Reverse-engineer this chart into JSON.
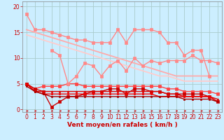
{
  "bg_color": "#cceeff",
  "grid_color": "#aacccc",
  "x_ticks": [
    0,
    1,
    2,
    3,
    4,
    5,
    6,
    7,
    8,
    9,
    10,
    11,
    12,
    13,
    14,
    15,
    16,
    17,
    18,
    19,
    20,
    21,
    22,
    23
  ],
  "xlabel": "Vent moyen/en rafales ( km/h )",
  "ylim": [
    -0.5,
    21
  ],
  "xlim": [
    -0.5,
    23.5
  ],
  "yticks": [
    0,
    5,
    10,
    15,
    20
  ],
  "lines": [
    {
      "y": [
        18.5,
        15.5,
        15.5,
        15.0,
        14.5,
        14.0,
        13.5,
        13.5,
        13.0,
        13.0,
        13.0,
        15.5,
        13.0,
        15.5,
        15.5,
        15.5,
        15.0,
        13.0,
        13.0,
        10.5,
        11.5,
        11.5,
        6.5,
        null
      ],
      "color": "#ff8888",
      "lw": 1.0,
      "marker": "s",
      "ms": 2.5,
      "zorder": 5
    },
    {
      "y": [
        null,
        null,
        null,
        11.5,
        10.5,
        5.0,
        6.5,
        9.0,
        8.5,
        6.5,
        8.5,
        9.5,
        7.5,
        10.0,
        8.5,
        9.5,
        9.0,
        9.5,
        9.5,
        9.5,
        10.5,
        9.5,
        9.5,
        9.0
      ],
      "color": "#ff8888",
      "lw": 1.0,
      "marker": "s",
      "ms": 2.5,
      "zorder": 5
    },
    {
      "y": [
        15.5,
        15.0,
        14.5,
        14.0,
        13.5,
        13.0,
        12.5,
        12.0,
        11.5,
        11.0,
        10.5,
        10.0,
        9.5,
        9.0,
        8.5,
        8.0,
        7.5,
        7.0,
        6.5,
        6.5,
        6.5,
        6.5,
        6.5,
        6.5
      ],
      "color": "#ffaaaa",
      "lw": 1.3,
      "marker": null,
      "ms": 0,
      "zorder": 2
    },
    {
      "y": [
        14.5,
        14.0,
        13.5,
        13.0,
        12.5,
        12.0,
        11.5,
        11.0,
        10.5,
        10.0,
        9.5,
        9.0,
        8.5,
        8.0,
        7.5,
        7.0,
        6.5,
        6.5,
        6.0,
        5.5,
        5.5,
        5.5,
        5.5,
        5.5
      ],
      "color": "#ffcccc",
      "lw": 1.3,
      "marker": null,
      "ms": 0,
      "zorder": 2
    },
    {
      "y": [
        5.0,
        4.0,
        4.5,
        4.5,
        4.5,
        5.0,
        5.0,
        4.5,
        4.5,
        4.5,
        4.5,
        4.5,
        4.5,
        4.5,
        4.5,
        4.5,
        4.5,
        4.0,
        4.0,
        3.5,
        3.5,
        3.5,
        3.5,
        3.0
      ],
      "color": "#ff4444",
      "lw": 1.0,
      "marker": "s",
      "ms": 2.5,
      "zorder": 4
    },
    {
      "y": [
        5.0,
        4.0,
        3.5,
        0.5,
        1.5,
        2.5,
        2.5,
        3.0,
        3.5,
        3.5,
        4.0,
        4.0,
        3.0,
        4.0,
        4.0,
        3.5,
        3.5,
        3.0,
        3.0,
        3.0,
        3.0,
        3.0,
        2.5,
        1.5
      ],
      "color": "#cc0000",
      "lw": 1.0,
      "marker": "s",
      "ms": 2.5,
      "zorder": 4
    },
    {
      "y": [
        5.0,
        3.5,
        3.5,
        3.5,
        3.5,
        3.5,
        3.5,
        3.5,
        3.5,
        3.5,
        3.5,
        3.5,
        3.5,
        3.5,
        3.5,
        3.5,
        3.5,
        3.0,
        3.0,
        2.5,
        2.5,
        2.5,
        2.5,
        2.0
      ],
      "color": "#dd0000",
      "lw": 1.0,
      "marker": "s",
      "ms": 2.0,
      "zorder": 4
    },
    {
      "y": [
        5.0,
        3.5,
        3.0,
        3.0,
        3.0,
        3.0,
        3.0,
        3.0,
        3.0,
        3.0,
        3.0,
        3.0,
        3.0,
        3.0,
        3.0,
        3.0,
        2.5,
        2.5,
        2.5,
        2.5,
        2.5,
        2.5,
        2.5,
        1.5
      ],
      "color": "#ee0000",
      "lw": 1.0,
      "marker": "s",
      "ms": 2.0,
      "zorder": 4
    },
    {
      "y": [
        4.5,
        3.5,
        3.0,
        2.5,
        2.5,
        2.5,
        2.5,
        2.5,
        2.5,
        2.5,
        2.5,
        2.5,
        2.5,
        2.5,
        2.5,
        2.5,
        2.5,
        2.5,
        2.5,
        2.0,
        2.0,
        2.0,
        2.0,
        1.5
      ],
      "color": "#aa0000",
      "lw": 1.0,
      "marker": "s",
      "ms": 2.0,
      "zorder": 4
    }
  ],
  "xlabel_color": "#cc0000",
  "tick_color": "#cc0000",
  "arrow_color": "#cc0000",
  "tick_fontsize": 5.5,
  "label_fontsize": 6.5
}
